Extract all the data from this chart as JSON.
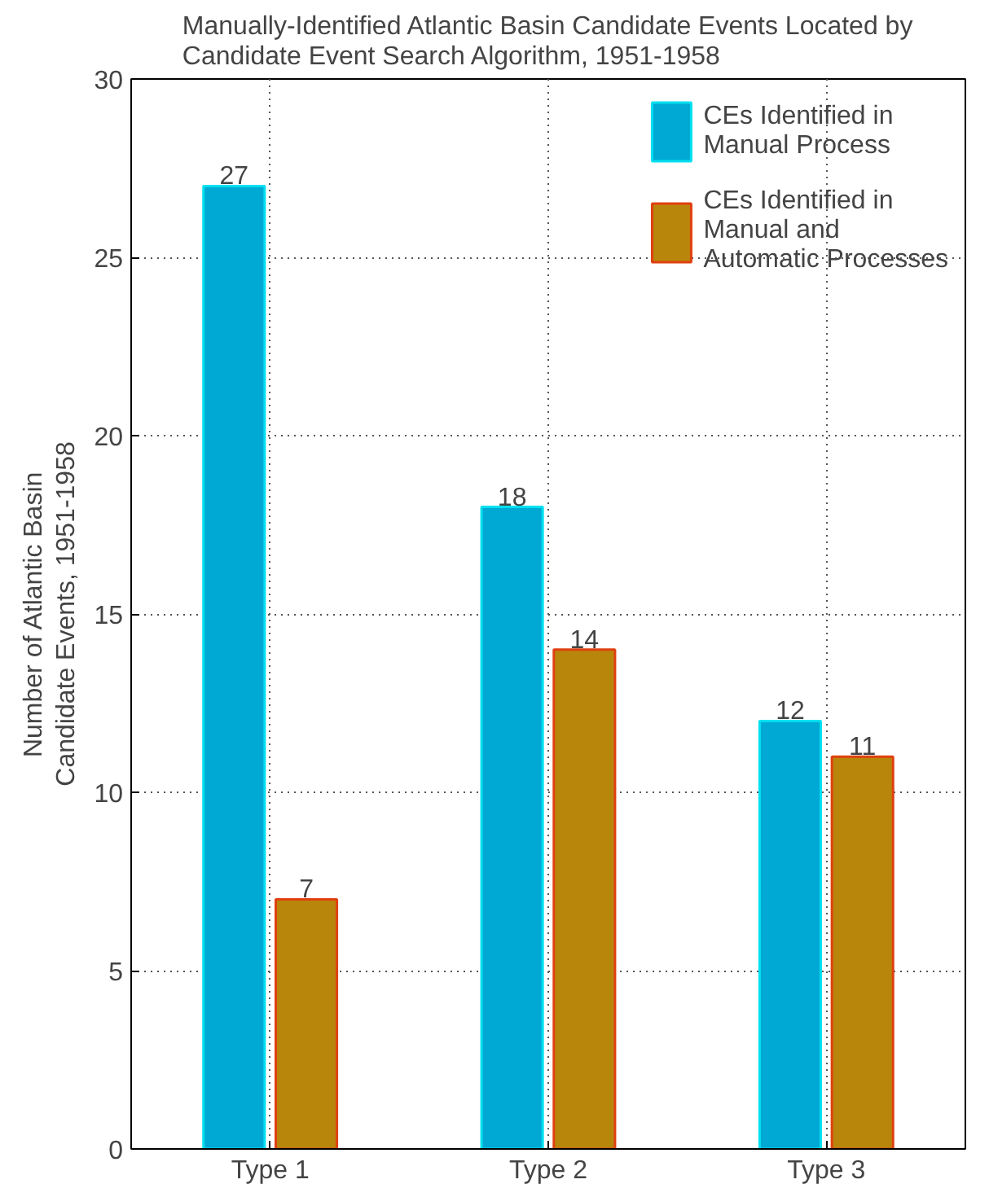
{
  "chart_data": {
    "type": "bar",
    "title": "Manually-Identified Atlantic Basin Candidate Events Located by Candidate Event Search Algorithm, 1951-1958",
    "ylabel": "Number of Atlantic Basin Candidate Events, 1951-1958",
    "categories": [
      "Type 1",
      "Type 2",
      "Type 3"
    ],
    "series": [
      {
        "name": "CEs Identified in Manual Process",
        "color": "#00a8d4",
        "values": [
          27,
          18,
          12
        ]
      },
      {
        "name": "CEs Identified in Manual and Automatic Processes",
        "color": "#b8860b",
        "values": [
          7,
          14,
          11
        ]
      }
    ],
    "ylim": [
      0,
      30
    ],
    "yticks": [
      0,
      5,
      10,
      15,
      20,
      25,
      30
    ],
    "grid": true,
    "legend": "top right",
    "data_labels": true
  }
}
